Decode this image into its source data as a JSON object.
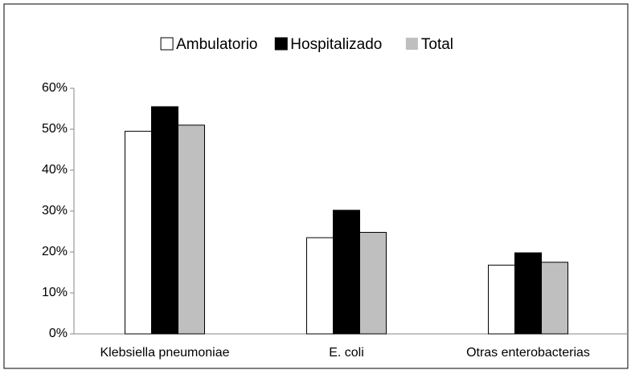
{
  "chart_data": {
    "type": "bar",
    "categories": [
      "Klebsiella pneumoniae",
      "E. coli",
      "Otras enterobacterias"
    ],
    "series": [
      {
        "name": "Ambulatorio",
        "color": "#ffffff",
        "values": [
          49.5,
          23.5,
          16.8
        ]
      },
      {
        "name": "Hospitalizado",
        "color": "#000000",
        "values": [
          55.5,
          30.2,
          19.8
        ]
      },
      {
        "name": "Total",
        "color": "#bfbfbf",
        "values": [
          51,
          24.8,
          17.5
        ]
      }
    ],
    "ylim": [
      0,
      60
    ],
    "yticks": [
      {
        "value": 0,
        "label": "0%"
      },
      {
        "value": 10,
        "label": "10%"
      },
      {
        "value": 20,
        "label": "20%"
      },
      {
        "value": 30,
        "label": "30%"
      },
      {
        "value": 40,
        "label": "40%"
      },
      {
        "value": 50,
        "label": "50%"
      },
      {
        "value": 60,
        "label": "60%"
      }
    ],
    "grid": false,
    "legend": "top"
  }
}
